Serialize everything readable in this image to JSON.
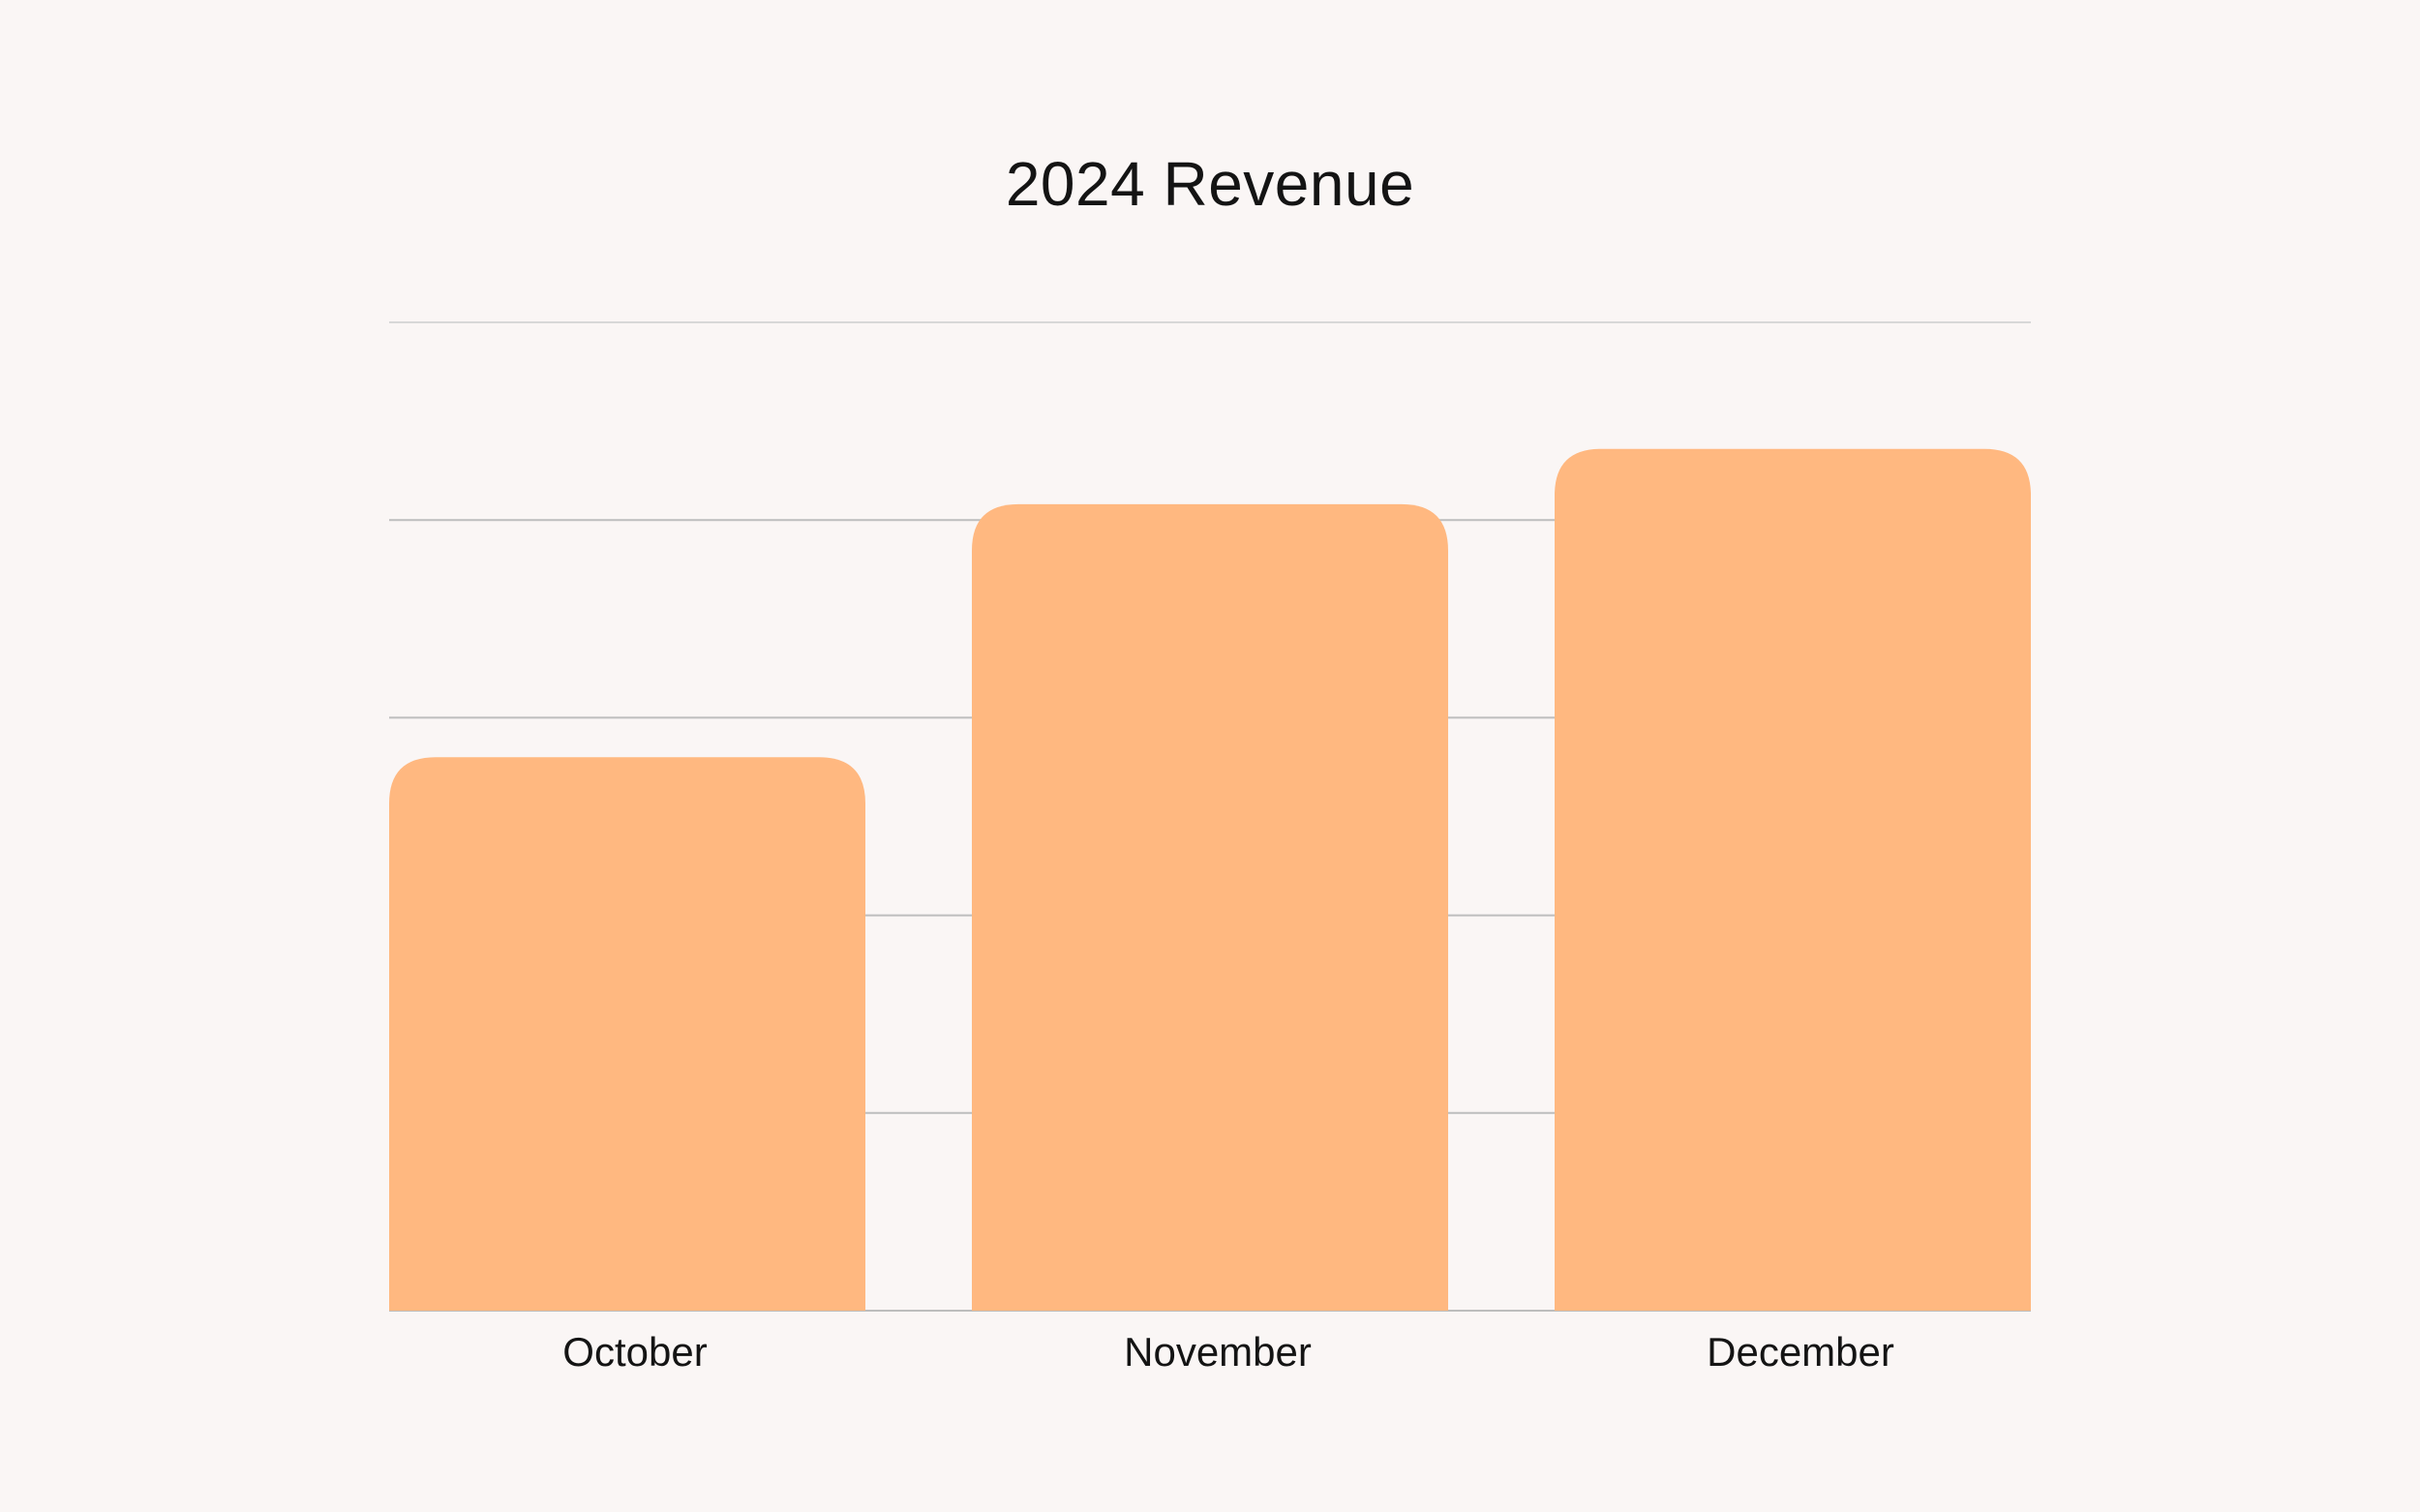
{
  "chart_data": {
    "type": "bar",
    "title": "2024 Revenue",
    "categories": [
      "October",
      "November",
      "December"
    ],
    "values": [
      2.8,
      4.08,
      4.36
    ],
    "ylim": [
      0,
      5
    ],
    "grid": true,
    "xlabel": "",
    "ylabel": "",
    "colors": {
      "bar": "#FFB880",
      "grid": "#BDBDBD",
      "grid_top": "#D8D8D8",
      "background": "#FAF6F5",
      "text": "#141414"
    }
  }
}
